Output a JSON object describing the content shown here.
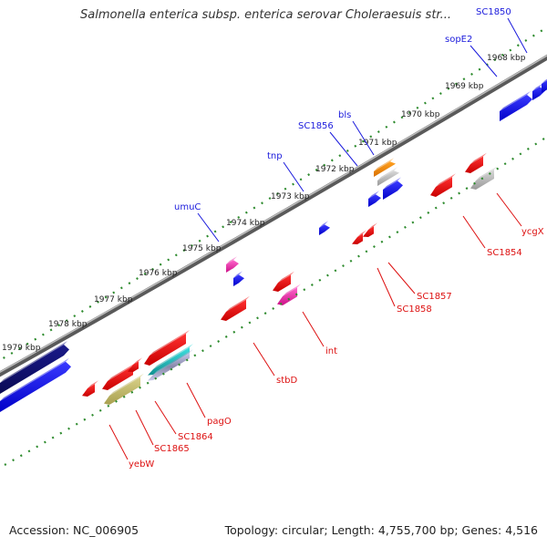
{
  "title": "Salmonella enterica subsp. enterica serovar Choleraesuis str...",
  "footer": {
    "accession": "Accession: NC_006905",
    "summary": "Topology: circular; Length: 4,755,700 bp; Genes: 4,516"
  },
  "colors": {
    "axis": "#7a7a7a",
    "tick": "#2e8b2e",
    "forward_label": "#1a1adc",
    "reverse_label": "#dd1111"
  },
  "ticks": [
    "1968 kbp",
    "1969 kbp",
    "1970 kbp",
    "1971 kbp",
    "1972 kbp",
    "1973 kbp",
    "1974 kbp",
    "1975 kbp",
    "1976 kbp",
    "1977 kbp",
    "1978 kbp",
    "1979 kbp"
  ],
  "forward_genes": [
    "SC1850",
    "sopE2",
    "bls",
    "SC1856",
    "tnp",
    "umuC"
  ],
  "reverse_genes": [
    "ycgX",
    "SC1854",
    "SC1857",
    "SC1858",
    "int",
    "stbD",
    "pagO",
    "SC1864",
    "SC1865",
    "yebW"
  ]
}
